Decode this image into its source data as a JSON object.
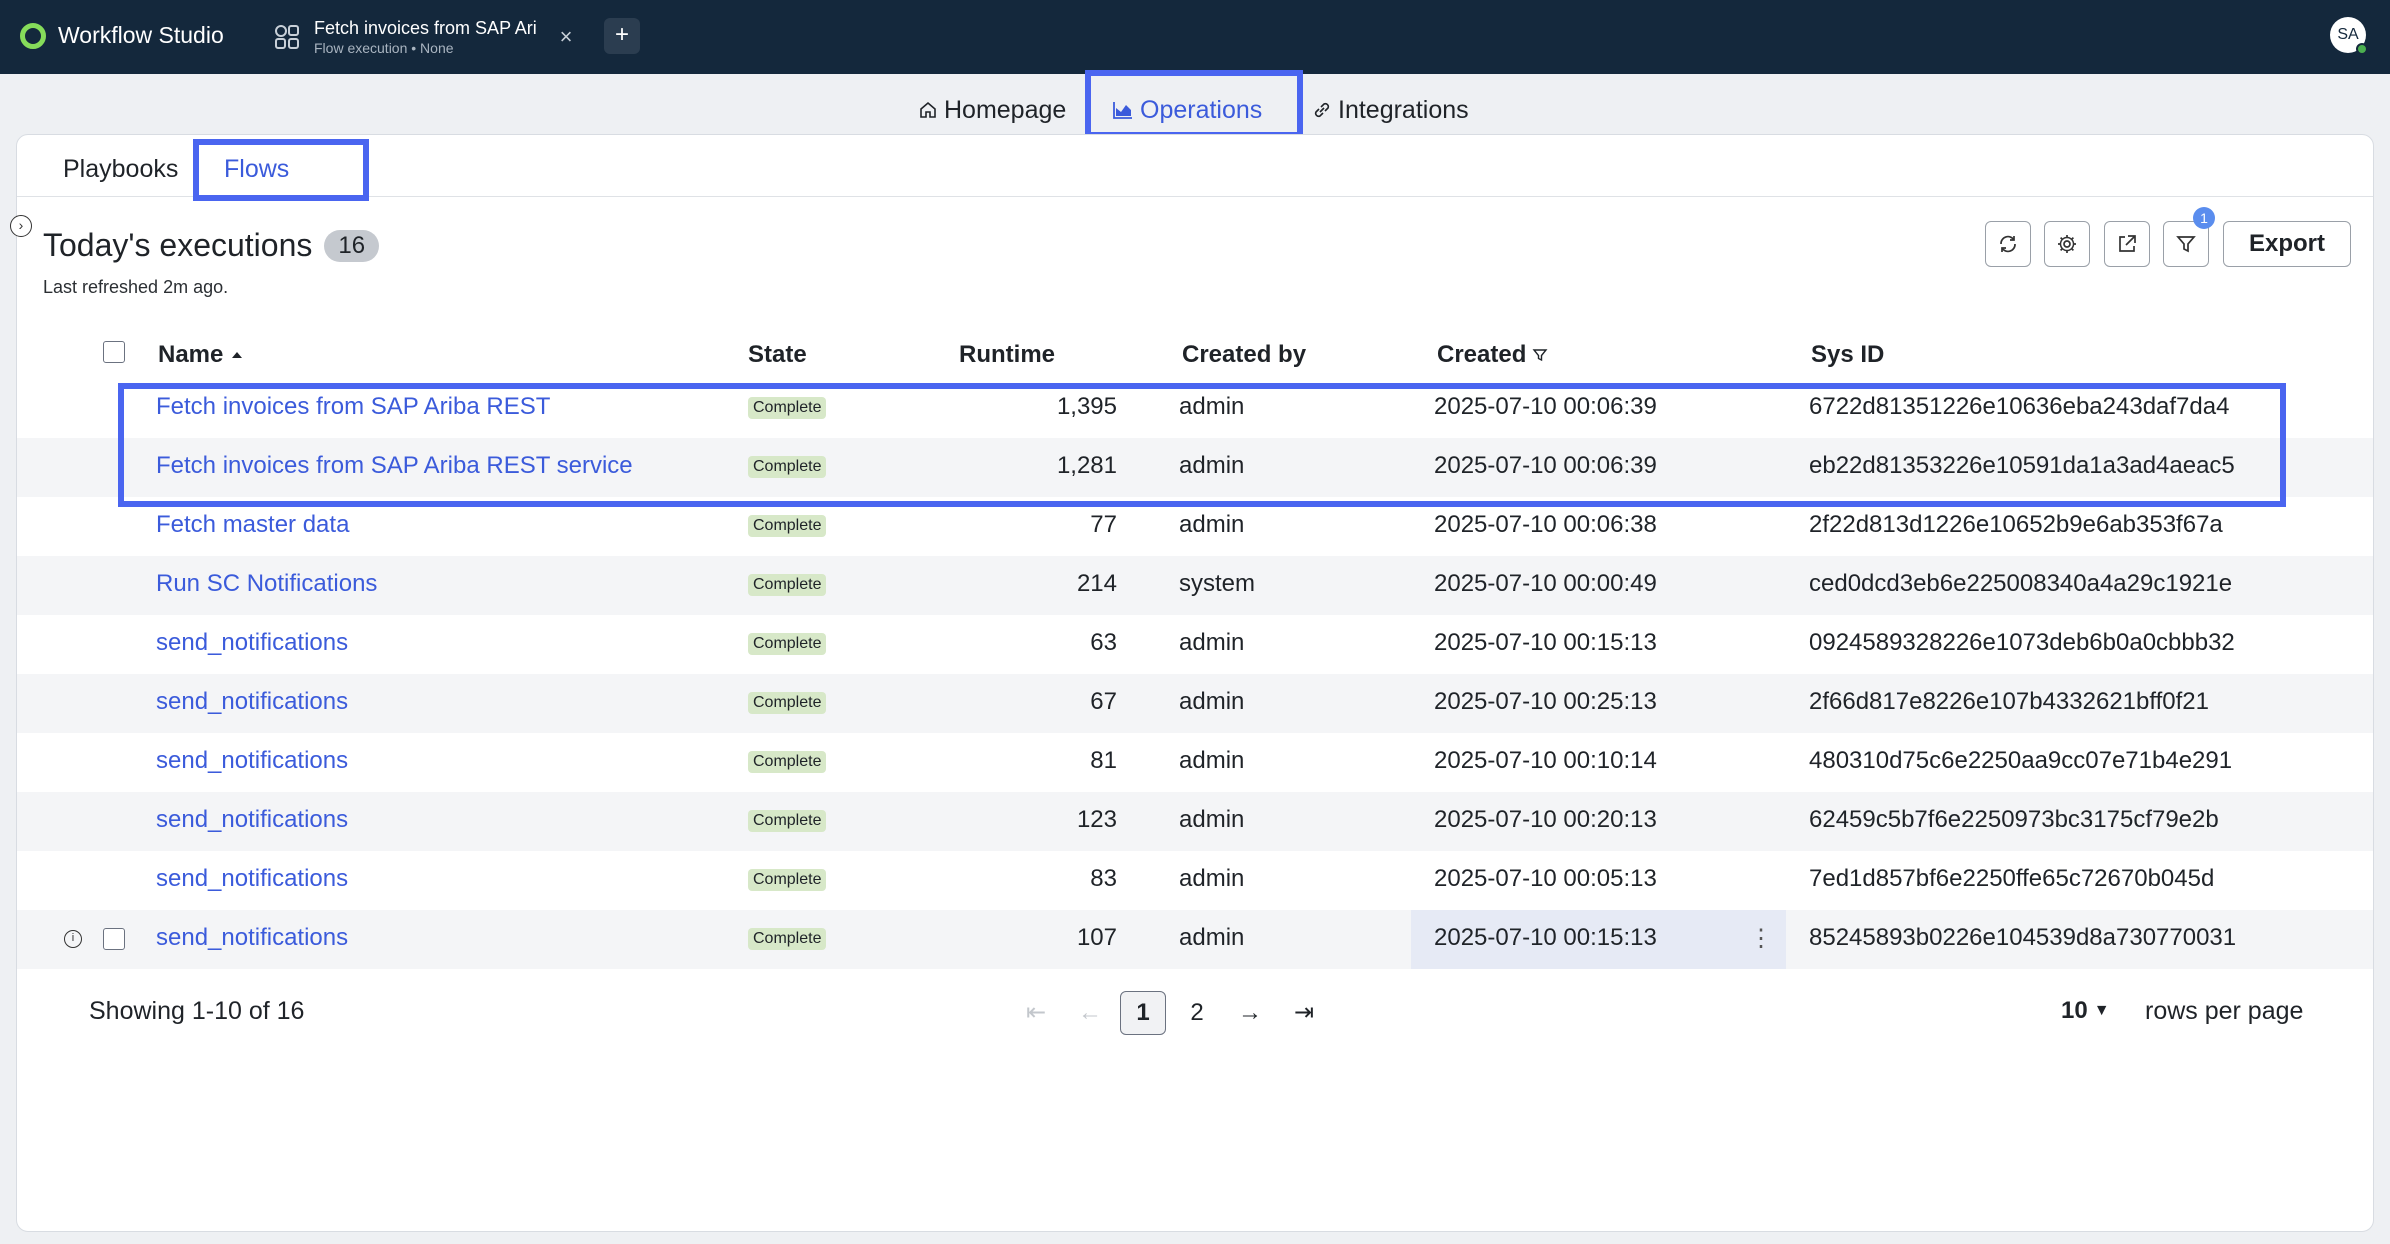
{
  "app": {
    "name": "Workflow Studio",
    "user_initials": "SA"
  },
  "doc_tab": {
    "title": "Fetch invoices from SAP Ari",
    "subtitle": "Flow execution • None",
    "close": "×"
  },
  "new_tab": "+",
  "main_nav": {
    "homepage": "Homepage",
    "operations": "Operations",
    "integrations": "Integrations",
    "active": "Operations"
  },
  "sub_tabs": {
    "playbooks": "Playbooks",
    "flows": "Flows",
    "active": "Flows"
  },
  "header": {
    "title": "Today's executions",
    "count": "16",
    "last_refreshed": "Last refreshed 2m ago."
  },
  "toolbar": {
    "export_label": "Export",
    "filter_count": "1"
  },
  "table": {
    "columns": {
      "name": "Name",
      "state": "State",
      "runtime": "Runtime",
      "created_by": "Created by",
      "created": "Created",
      "sys_id": "Sys ID"
    },
    "sort": {
      "column": "Name",
      "direction": "asc"
    },
    "rows": [
      {
        "name": "Fetch invoices from SAP Ariba REST",
        "state": "Complete",
        "runtime": "1,395",
        "created_by": "admin",
        "created": "2025-07-10 00:06:39",
        "sys_id": "6722d81351226e10636eba243daf7da4"
      },
      {
        "name": "Fetch invoices from SAP Ariba REST service",
        "state": "Complete",
        "runtime": "1,281",
        "created_by": "admin",
        "created": "2025-07-10 00:06:39",
        "sys_id": "eb22d81353226e10591da1a3ad4aeac5"
      },
      {
        "name": "Fetch master data",
        "state": "Complete",
        "runtime": "77",
        "created_by": "admin",
        "created": "2025-07-10 00:06:38",
        "sys_id": "2f22d813d1226e10652b9e6ab353f67a"
      },
      {
        "name": "Run SC Notifications",
        "state": "Complete",
        "runtime": "214",
        "created_by": "system",
        "created": "2025-07-10 00:00:49",
        "sys_id": "ced0dcd3eb6e225008340a4a29c1921e"
      },
      {
        "name": "send_notifications",
        "state": "Complete",
        "runtime": "63",
        "created_by": "admin",
        "created": "2025-07-10 00:15:13",
        "sys_id": "0924589328226e1073deb6b0a0cbbb32"
      },
      {
        "name": "send_notifications",
        "state": "Complete",
        "runtime": "67",
        "created_by": "admin",
        "created": "2025-07-10 00:25:13",
        "sys_id": "2f66d817e8226e107b4332621bff0f21"
      },
      {
        "name": "send_notifications",
        "state": "Complete",
        "runtime": "81",
        "created_by": "admin",
        "created": "2025-07-10 00:10:14",
        "sys_id": "480310d75c6e2250aa9cc07e71b4e291"
      },
      {
        "name": "send_notifications",
        "state": "Complete",
        "runtime": "123",
        "created_by": "admin",
        "created": "2025-07-10 00:20:13",
        "sys_id": "62459c5b7f6e2250973bc3175cf79e2b"
      },
      {
        "name": "send_notifications",
        "state": "Complete",
        "runtime": "83",
        "created_by": "admin",
        "created": "2025-07-10 00:05:13",
        "sys_id": "7ed1d857bf6e2250ffe65c72670b045d"
      },
      {
        "name": "send_notifications",
        "state": "Complete",
        "runtime": "107",
        "created_by": "admin",
        "created": "2025-07-10 00:15:13",
        "sys_id": "85245893b0226e104539d8a730770031"
      }
    ]
  },
  "pagination": {
    "showing": "Showing 1-10 of 16",
    "pages": [
      "1",
      "2"
    ],
    "current_page": "1",
    "rows_per_page": "10",
    "rows_per_page_label": "rows per page"
  },
  "icons": {
    "brand": "workflow-studio-logo",
    "tab": "flow-icon",
    "home": "home-icon",
    "operations": "chart-icon",
    "integrations": "link-icon",
    "refresh": "refresh-icon",
    "settings": "gear-icon",
    "share": "share-icon",
    "filter": "filter-icon"
  },
  "colors": {
    "topbar": "#14283c",
    "accent": "#3b5bdb",
    "highlight": "#4a65f0",
    "state_badge": "#d7e8c8",
    "brand_logo": "#86dc5a"
  }
}
